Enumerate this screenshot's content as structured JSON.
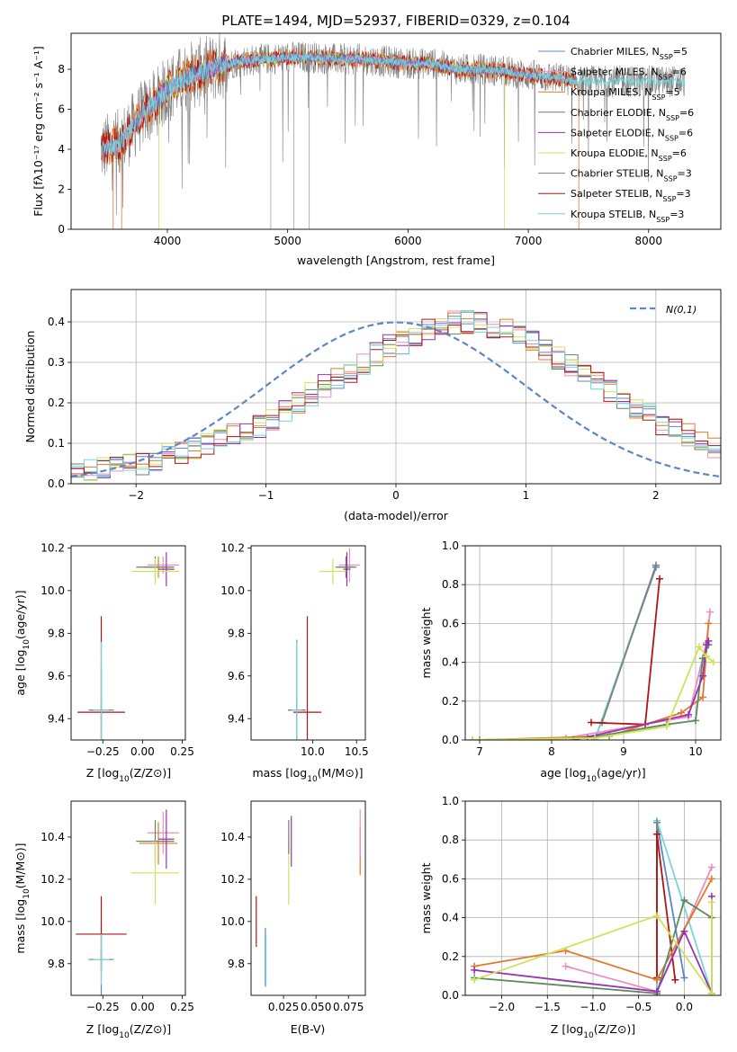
{
  "figure": {
    "title": "PLATE=1494, MJD=52937, FIBERID=0329, z=0.104"
  },
  "colors": {
    "Chabrier MILES": "#5b87c9",
    "Salpeter MILES": "#e88fbf",
    "Kroupa MILES": "#e2782b",
    "Chabrier ELODIE": "#5d8a5e",
    "Salpeter ELODIE": "#9a32b0",
    "Kroupa ELODIE": "#cfe25a",
    "Chabrier STELIB": "#808080",
    "Salpeter STELIB": "#b01515",
    "Kroupa STELIB": "#76d6da"
  },
  "chart_data": [
    {
      "id": "spectrum",
      "type": "line",
      "xlabel": "wavelength [Angstrom, rest frame]",
      "ylabel": "Flux [fλ10⁻¹⁷ erg cm⁻² s⁻¹ A⁻¹]",
      "xlim": [
        3200,
        8600
      ],
      "ylim": [
        0,
        9.8
      ],
      "xticks": [
        4000,
        5000,
        6000,
        7000,
        8000
      ],
      "yticks": [
        0,
        2,
        4,
        6,
        8
      ],
      "grid": false,
      "legend_position": "top-right",
      "continuum": {
        "x": [
          3450,
          3600,
          3700,
          3800,
          3900,
          4000,
          4100,
          4200,
          4400,
          4600,
          4800,
          5000,
          5200,
          5400,
          5600,
          5800,
          6000,
          6200,
          6400,
          6600,
          6800,
          7000,
          7200,
          7400
        ],
        "y": [
          4.0,
          4.3,
          5.0,
          5.8,
          6.3,
          7.0,
          7.4,
          7.7,
          8.1,
          8.4,
          8.5,
          8.6,
          8.6,
          8.5,
          8.5,
          8.4,
          8.3,
          8.3,
          8.0,
          8.0,
          7.9,
          7.7,
          7.6,
          7.4
        ]
      },
      "series": [
        {
          "name": "Chabrier MILES, N_SSP=5",
          "label": "Chabrier MILES, N",
          "sub": "SSP",
          "n": "=5"
        },
        {
          "name": "Salpeter MILES, N_SSP=6",
          "label": "Salpeter MILES, N",
          "sub": "SSP",
          "n": "=6"
        },
        {
          "name": "Kroupa MILES, N_SSP=5",
          "label": "Kroupa MILES, N",
          "sub": "SSP",
          "n": "=5"
        },
        {
          "name": "Chabrier ELODIE, N_SSP=6",
          "label": "Chabrier ELODIE, N",
          "sub": "SSP",
          "n": "=6"
        },
        {
          "name": "Salpeter ELODIE, N_SSP=6",
          "label": "Salpeter ELODIE, N",
          "sub": "SSP",
          "n": "=6"
        },
        {
          "name": "Kroupa ELODIE, N_SSP=6",
          "label": "Kroupa ELODIE, N",
          "sub": "SSP",
          "n": "=6"
        },
        {
          "name": "Chabrier STELIB, N_SSP=3",
          "label": "Chabrier STELIB, N",
          "sub": "SSP",
          "n": "=3"
        },
        {
          "name": "Salpeter STELIB, N_SSP=3",
          "label": "Salpeter STELIB, N",
          "sub": "SSP",
          "n": "=3"
        },
        {
          "name": "Kroupa STELIB, N_SSP=3",
          "label": "Kroupa STELIB, N",
          "sub": "SSP",
          "n": "=3"
        }
      ]
    },
    {
      "id": "residuals",
      "type": "line",
      "xlabel": "(data-model)/error",
      "ylabel": "Normed distribution",
      "xlim": [
        -2.5,
        2.5
      ],
      "ylim": [
        0,
        0.48
      ],
      "xticks": [
        -2,
        -1,
        0,
        1,
        2
      ],
      "yticks": [
        0.0,
        0.1,
        0.2,
        0.3,
        0.4
      ],
      "grid": true,
      "legend_position": "top-right",
      "legend": "N(0,1)",
      "bin_width": 0.1,
      "bins_start": -2.5,
      "histogram_base": [
        0.03,
        0.03,
        0.04,
        0.05,
        0.05,
        0.05,
        0.06,
        0.07,
        0.08,
        0.09,
        0.1,
        0.11,
        0.12,
        0.13,
        0.14,
        0.16,
        0.18,
        0.2,
        0.22,
        0.24,
        0.26,
        0.28,
        0.3,
        0.32,
        0.34,
        0.35,
        0.37,
        0.38,
        0.39,
        0.4,
        0.4,
        0.4,
        0.39,
        0.38,
        0.37,
        0.35,
        0.33,
        0.31,
        0.29,
        0.27,
        0.25,
        0.23,
        0.21,
        0.19,
        0.17,
        0.15,
        0.13,
        0.12,
        0.1,
        0.09,
        0.08
      ]
    },
    {
      "id": "age-vs-z",
      "type": "scatter",
      "xlabel": "Z [log10(Z/Z⊙)]",
      "ylabel": "age  [log10(age/yr)]",
      "xlim": [
        -0.45,
        0.27
      ],
      "ylim": [
        9.3,
        10.21
      ],
      "xticks": [
        -0.25,
        0.0,
        0.25
      ],
      "yticks": [
        9.4,
        9.6,
        9.8,
        10.0,
        10.2
      ],
      "points": [
        {
          "s": "Chabrier MILES",
          "x": -0.26,
          "y": 9.44,
          "xe": 0.08,
          "ye": 0.2
        },
        {
          "s": "Salpeter MILES",
          "x": 0.13,
          "y": 10.12,
          "xe": 0.1,
          "ye": 0.04
        },
        {
          "s": "Kroupa MILES",
          "x": 0.1,
          "y": 10.11,
          "xe": 0.09,
          "ye": 0.05
        },
        {
          "s": "Chabrier ELODIE",
          "x": 0.08,
          "y": 10.11,
          "xe": 0.12,
          "ye": 0.05
        },
        {
          "s": "Salpeter ELODIE",
          "x": 0.15,
          "y": 10.1,
          "xe": 0.05,
          "ye": 0.08
        },
        {
          "s": "Kroupa ELODIE",
          "x": 0.08,
          "y": 10.09,
          "xe": 0.15,
          "ye": 0.06
        },
        {
          "s": "Chabrier STELIB",
          "x": -0.26,
          "y": 9.44,
          "xe": 0.06,
          "ye": 0.05
        },
        {
          "s": "Salpeter STELIB",
          "x": -0.26,
          "y": 9.43,
          "xe": 0.15,
          "ye": 0.45
        },
        {
          "s": "Kroupa STELIB",
          "x": -0.26,
          "y": 9.44,
          "xe": 0.05,
          "ye": 0.32
        }
      ]
    },
    {
      "id": "age-vs-mass",
      "type": "scatter",
      "xlabel": "mass [log10(M/M⊙)]",
      "ylabel": "",
      "xlim": [
        9.3,
        10.6
      ],
      "ylim": [
        9.3,
        10.21
      ],
      "xticks": [
        10.0,
        10.5
      ],
      "yticks": [
        9.4,
        9.6,
        9.8,
        10.0,
        10.2
      ],
      "points": [
        {
          "s": "Chabrier MILES",
          "x": 9.82,
          "y": 9.44,
          "xe": 0.1,
          "ye": 0.33
        },
        {
          "s": "Salpeter MILES",
          "x": 10.42,
          "y": 10.12,
          "xe": 0.12,
          "ye": 0.08
        },
        {
          "s": "Kroupa MILES",
          "x": 10.38,
          "y": 10.11,
          "xe": 0.1,
          "ye": 0.05
        },
        {
          "s": "Chabrier ELODIE",
          "x": 10.38,
          "y": 10.11,
          "xe": 0.12,
          "ye": 0.05
        },
        {
          "s": "Salpeter ELODIE",
          "x": 10.39,
          "y": 10.1,
          "xe": 0.04,
          "ye": 0.08
        },
        {
          "s": "Kroupa ELODIE",
          "x": 10.23,
          "y": 10.09,
          "xe": 0.15,
          "ye": 0.06
        },
        {
          "s": "Chabrier STELIB",
          "x": 9.82,
          "y": 9.44,
          "xe": 0.1,
          "ye": 0.05
        },
        {
          "s": "Salpeter STELIB",
          "x": 9.94,
          "y": 9.43,
          "xe": 0.16,
          "ye": 0.45
        },
        {
          "s": "Kroupa STELIB",
          "x": 9.82,
          "y": 9.44,
          "xe": 0.06,
          "ye": 0.32
        }
      ]
    },
    {
      "id": "weight-vs-age",
      "type": "line",
      "xlabel": "age  [log10(age/yr)]",
      "ylabel": "mass weight",
      "xlim": [
        6.8,
        10.35
      ],
      "ylim": [
        0,
        1.0
      ],
      "xticks": [
        7,
        8,
        9,
        10
      ],
      "yticks": [
        0.0,
        0.2,
        0.4,
        0.6,
        0.8,
        1.0
      ],
      "grid": true,
      "series": [
        {
          "s": "Chabrier MILES",
          "x": [
            8.6,
            9.45
          ],
          "y": [
            0.0,
            0.89
          ]
        },
        {
          "s": "Kroupa STELIB",
          "x": [
            8.6,
            9.45
          ],
          "y": [
            0.0,
            0.9
          ]
        },
        {
          "s": "Chabrier STELIB",
          "x": [
            8.7,
            9.45
          ],
          "y": [
            0.09,
            0.9
          ]
        },
        {
          "s": "Salpeter STELIB",
          "x": [
            8.55,
            9.3,
            9.5
          ],
          "y": [
            0.09,
            0.08,
            0.83
          ]
        },
        {
          "s": "Salpeter MILES",
          "x": [
            8.2,
            9.9,
            10.15,
            10.2
          ],
          "y": [
            0.01,
            0.12,
            0.5,
            0.66
          ]
        },
        {
          "s": "Kroupa MILES",
          "x": [
            7.0,
            8.8,
            9.8,
            10.1,
            10.18
          ],
          "y": [
            0.0,
            0.02,
            0.14,
            0.22,
            0.6
          ]
        },
        {
          "s": "Chabrier ELODIE",
          "x": [
            6.9,
            8.5,
            9.6,
            10.0,
            10.1,
            10.18
          ],
          "y": [
            0.0,
            0.01,
            0.08,
            0.1,
            0.42,
            0.49
          ]
        },
        {
          "s": "Salpeter ELODIE",
          "x": [
            8.3,
            9.9,
            10.1,
            10.15,
            10.18
          ],
          "y": [
            0.0,
            0.13,
            0.33,
            0.49,
            0.51
          ]
        },
        {
          "s": "Kroupa ELODIE",
          "x": [
            6.9,
            8.6,
            9.6,
            10.05,
            10.15,
            10.25
          ],
          "y": [
            0.0,
            0.01,
            0.07,
            0.48,
            0.43,
            0.4
          ]
        }
      ]
    },
    {
      "id": "mass-vs-z",
      "type": "scatter",
      "xlabel": "Z [log10(Z/Z⊙)]",
      "ylabel": "mass [log10(M/M⊙)]",
      "xlim": [
        -0.45,
        0.27
      ],
      "ylim": [
        9.65,
        10.57
      ],
      "xticks": [
        -0.25,
        0.0,
        0.25
      ],
      "yticks": [
        9.8,
        10.0,
        10.2,
        10.4
      ],
      "points": [
        {
          "s": "Chabrier MILES",
          "x": -0.26,
          "y": 9.82,
          "xe": 0.08,
          "ye": 0.17
        },
        {
          "s": "Salpeter MILES",
          "x": 0.13,
          "y": 10.42,
          "xe": 0.1,
          "ye": 0.1
        },
        {
          "s": "Kroupa MILES",
          "x": 0.1,
          "y": 10.37,
          "xe": 0.12,
          "ye": 0.1
        },
        {
          "s": "Chabrier ELODIE",
          "x": 0.08,
          "y": 10.38,
          "xe": 0.12,
          "ye": 0.1
        },
        {
          "s": "Salpeter ELODIE",
          "x": 0.15,
          "y": 10.39,
          "xe": 0.05,
          "ye": 0.14
        },
        {
          "s": "Kroupa ELODIE",
          "x": 0.08,
          "y": 10.23,
          "xe": 0.15,
          "ye": 0.15
        },
        {
          "s": "Chabrier STELIB",
          "x": -0.26,
          "y": 9.82,
          "xe": 0.06,
          "ye": 0.05
        },
        {
          "s": "Salpeter STELIB",
          "x": -0.26,
          "y": 9.94,
          "xe": 0.16,
          "ye": 0.18
        },
        {
          "s": "Kroupa STELIB",
          "x": -0.26,
          "y": 9.82,
          "xe": 0.05,
          "ye": 0.12
        }
      ]
    },
    {
      "id": "mass-vs-ebv",
      "type": "scatter",
      "xlabel": "E(B-V)",
      "ylabel": "",
      "xlim": [
        0.0,
        0.088
      ],
      "ylim": [
        9.65,
        10.57
      ],
      "xticks": [
        0.025,
        0.05,
        0.075
      ],
      "yticks": [
        9.8,
        10.0,
        10.2,
        10.4
      ],
      "points": [
        {
          "s": "Salpeter STELIB",
          "x": 0.004,
          "y": 10.0,
          "ye": 0.12
        },
        {
          "s": "Chabrier MILES",
          "x": 0.011,
          "y": 9.83,
          "ye": 0.14
        },
        {
          "s": "Kroupa STELIB",
          "x": 0.0115,
          "y": 9.82,
          "ye": 0.12
        },
        {
          "s": "Kroupa ELODIE",
          "x": 0.029,
          "y": 10.24,
          "ye": 0.16
        },
        {
          "s": "Chabrier ELODIE",
          "x": 0.029,
          "y": 10.4,
          "ye": 0.08
        },
        {
          "s": "Salpeter ELODIE",
          "x": 0.031,
          "y": 10.38,
          "ye": 0.12
        },
        {
          "s": "Kroupa MILES",
          "x": 0.084,
          "y": 10.33,
          "ye": 0.11
        },
        {
          "s": "Salpeter MILES",
          "x": 0.084,
          "y": 10.42,
          "ye": 0.11
        }
      ]
    },
    {
      "id": "weight-vs-z",
      "type": "line",
      "xlabel": "Z [log10(Z/Z⊙)]",
      "ylabel": "mass weight",
      "xlim": [
        -2.4,
        0.4
      ],
      "ylim": [
        0,
        1.0
      ],
      "xticks": [
        -2.0,
        -1.5,
        -1.0,
        -0.5,
        0.0
      ],
      "yticks": [
        0.0,
        0.2,
        0.4,
        0.6,
        0.8,
        1.0
      ],
      "grid": true,
      "series": [
        {
          "s": "Chabrier MILES",
          "x": [
            -0.3,
            -0.3,
            0.0
          ],
          "y": [
            0.0,
            0.89,
            0.09
          ]
        },
        {
          "s": "Kroupa STELIB",
          "x": [
            -0.3,
            -0.3,
            0.3
          ],
          "y": [
            0.0,
            0.9,
            0.01
          ]
        },
        {
          "s": "Chabrier STELIB",
          "x": [
            -0.3,
            -0.3
          ],
          "y": [
            0.09,
            0.89
          ]
        },
        {
          "s": "Salpeter STELIB",
          "x": [
            -0.3,
            -0.3,
            -0.1
          ],
          "y": [
            0.09,
            0.83,
            0.08
          ]
        },
        {
          "s": "Salpeter MILES",
          "x": [
            -1.3,
            -0.3,
            0.3
          ],
          "y": [
            0.15,
            0.02,
            0.66
          ]
        },
        {
          "s": "Kroupa MILES",
          "x": [
            -2.3,
            -1.3,
            -0.3,
            0.3
          ],
          "y": [
            0.15,
            0.23,
            0.08,
            0.6
          ]
        },
        {
          "s": "Chabrier ELODIE",
          "x": [
            -2.3,
            -0.3,
            0.0,
            0.3
          ],
          "y": [
            0.09,
            0.01,
            0.49,
            0.4
          ]
        },
        {
          "s": "Salpeter ELODIE",
          "x": [
            -2.3,
            -0.3,
            0.0,
            0.3,
            0.3
          ],
          "y": [
            0.13,
            0.02,
            0.33,
            0.01,
            0.51
          ]
        },
        {
          "s": "Kroupa ELODIE",
          "x": [
            -2.3,
            -0.3,
            0.3,
            0.3
          ],
          "y": [
            0.08,
            0.41,
            0.01,
            0.48
          ]
        }
      ]
    }
  ]
}
